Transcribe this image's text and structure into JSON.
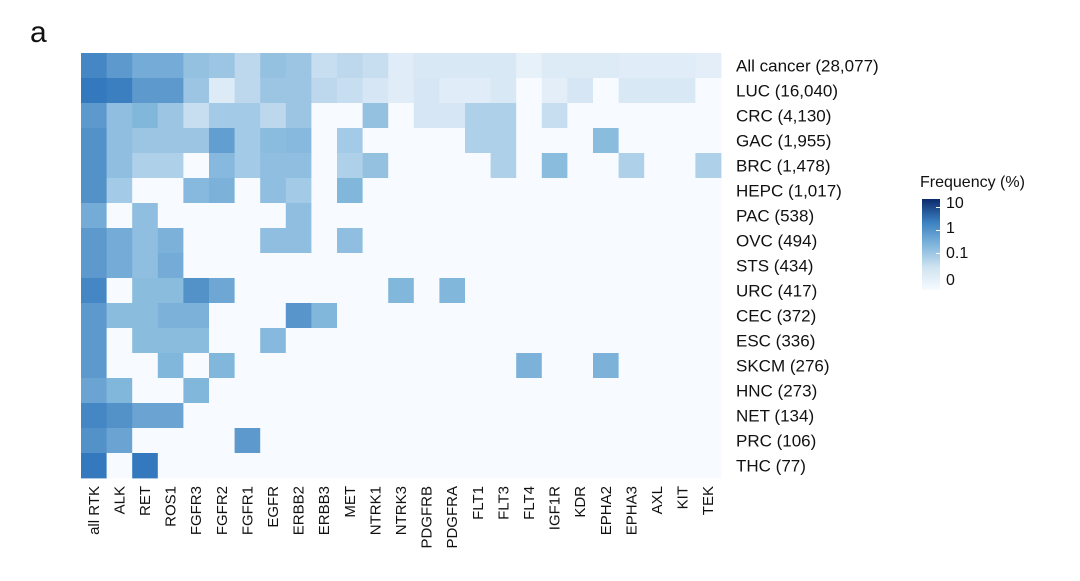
{
  "panel_label": "a",
  "chart_data": {
    "type": "heatmap",
    "legend": {
      "title": "Frequency (%)",
      "ticks": [
        "10",
        "1",
        "0.1",
        "0"
      ],
      "tick_values": [
        10,
        1,
        0.1,
        0
      ]
    },
    "columns": [
      "all RTK",
      "ALK",
      "RET",
      "ROS1",
      "FGFR3",
      "FGFR2",
      "FGFR1",
      "EGFR",
      "ERBB2",
      "ERBB3",
      "MET",
      "NTRK1",
      "NTRK3",
      "PDGFRB",
      "PDGFRA",
      "FLT1",
      "FLT3",
      "FLT4",
      "IGF1R",
      "KDR",
      "EPHA2",
      "EPHA3",
      "AXL",
      "KIT",
      "TEK"
    ],
    "rows": [
      "All cancer (28,077)",
      "LUC (16,040)",
      "CRC (4,130)",
      "GAC (1,955)",
      "BRC (1,478)",
      "HEPC (1,017)",
      "PAC (538)",
      "OVC (494)",
      "STS (434)",
      "URC (417)",
      "CEC (372)",
      "ESC (336)",
      "SKCM (276)",
      "HNC (273)",
      "NET (134)",
      "PRC (106)",
      "THC (77)"
    ],
    "values": [
      [
        6,
        3,
        1.5,
        1.5,
        0.6,
        0.5,
        0.2,
        0.6,
        0.5,
        0.15,
        0.2,
        0.15,
        0.05,
        0.08,
        0.08,
        0.08,
        0.08,
        0.03,
        0.06,
        0.06,
        0.06,
        0.05,
        0.05,
        0.05,
        0.04
      ],
      [
        10,
        8,
        3,
        3,
        0.5,
        0.06,
        0.2,
        0.5,
        0.5,
        0.2,
        0.15,
        0.1,
        0.05,
        0.1,
        0.05,
        0.05,
        0.08,
        0,
        0.04,
        0.1,
        0,
        0.08,
        0.08,
        0.08,
        0
      ],
      [
        3,
        0.7,
        1,
        0.5,
        0.15,
        0.4,
        0.4,
        0.2,
        0.5,
        0,
        0,
        0.6,
        0,
        0.1,
        0.1,
        0.3,
        0.3,
        0,
        0.15,
        0,
        0,
        0,
        0,
        0,
        0
      ],
      [
        4,
        0.7,
        0.5,
        0.5,
        0.5,
        2.5,
        0.4,
        0.8,
        0.9,
        0,
        0.4,
        0,
        0,
        0,
        0,
        0.3,
        0.3,
        0,
        0,
        0,
        0.8,
        0,
        0,
        0,
        0
      ],
      [
        4,
        0.7,
        0.3,
        0.3,
        0,
        0.9,
        0.4,
        0.7,
        0.7,
        0,
        0.3,
        0.6,
        0,
        0,
        0,
        0,
        0.3,
        0,
        0.8,
        0,
        0,
        0.3,
        0,
        0,
        0.3
      ],
      [
        4,
        0.4,
        0,
        0,
        0.9,
        1.2,
        0,
        0.7,
        0.4,
        0,
        1,
        0,
        0,
        0,
        0,
        0,
        0,
        0,
        0,
        0,
        0,
        0,
        0,
        0,
        0
      ],
      [
        1.5,
        0,
        0.7,
        0,
        0,
        0,
        0,
        0,
        0.7,
        0,
        0,
        0,
        0,
        0,
        0,
        0,
        0,
        0,
        0,
        0,
        0,
        0,
        0,
        0,
        0
      ],
      [
        3,
        1.5,
        0.7,
        1.2,
        0,
        0,
        0,
        0.7,
        0.7,
        0,
        0.7,
        0,
        0,
        0,
        0,
        0,
        0,
        0,
        0,
        0,
        0,
        0,
        0,
        0,
        0
      ],
      [
        3,
        1.5,
        0.7,
        1.5,
        0,
        0,
        0,
        0,
        0,
        0,
        0,
        0,
        0,
        0,
        0,
        0,
        0,
        0,
        0,
        0,
        0,
        0,
        0,
        0,
        0
      ],
      [
        6,
        0,
        0.8,
        0.8,
        4,
        1.8,
        0,
        0,
        0,
        0,
        0,
        0,
        1,
        0,
        1,
        0,
        0,
        0,
        0,
        0,
        0,
        0,
        0,
        0,
        0
      ],
      [
        3,
        0.8,
        0.8,
        1.2,
        1.2,
        0,
        0,
        0,
        3.5,
        1,
        0,
        0,
        0,
        0,
        0,
        0,
        0,
        0,
        0,
        0,
        0,
        0,
        0,
        0,
        0
      ],
      [
        3,
        0,
        0.8,
        0.8,
        0.8,
        0,
        0,
        0.9,
        0,
        0,
        0,
        0,
        0,
        0,
        0,
        0,
        0,
        0,
        0,
        0,
        0,
        0,
        0,
        0,
        0
      ],
      [
        3,
        0,
        0,
        1,
        0,
        1,
        0,
        0,
        0,
        0,
        0,
        0,
        0,
        0,
        0,
        0,
        0,
        1.2,
        0,
        0,
        1.2,
        0,
        0,
        0,
        0
      ],
      [
        2,
        1,
        0,
        0,
        1,
        0,
        0,
        0,
        0,
        0,
        0,
        0,
        0,
        0,
        0,
        0,
        0,
        0,
        0,
        0,
        0,
        0,
        0,
        0,
        0
      ],
      [
        6,
        4,
        2,
        2,
        0,
        0,
        0,
        0,
        0,
        0,
        0,
        0,
        0,
        0,
        0,
        0,
        0,
        0,
        0,
        0,
        0,
        0,
        0,
        0,
        0
      ],
      [
        4,
        2,
        0,
        0,
        0,
        0,
        3,
        0,
        0,
        0,
        0,
        0,
        0,
        0,
        0,
        0,
        0,
        0,
        0,
        0,
        0,
        0,
        0,
        0,
        0
      ],
      [
        10,
        0,
        10,
        0,
        0,
        0,
        0,
        0,
        0,
        0,
        0,
        0,
        0,
        0,
        0,
        0,
        0,
        0,
        0,
        0,
        0,
        0,
        0,
        0,
        0
      ]
    ]
  }
}
